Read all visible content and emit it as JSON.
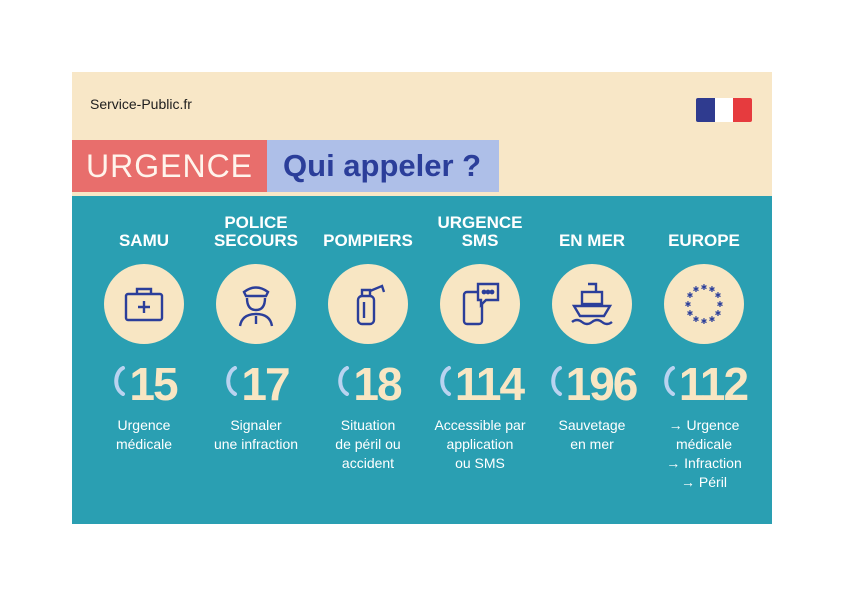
{
  "header": {
    "brand": "Service-Public.fr",
    "title_red": "URGENCE",
    "title_blue": "Qui appeler ?"
  },
  "colors": {
    "cream": "#f8e7c7",
    "teal": "#2a9fb2",
    "red": "#e86e6c",
    "blue_box": "#aebfe8",
    "navy": "#2b3e9a"
  },
  "services": [
    {
      "name": "SAMU",
      "icon": "medical-kit-icon",
      "number": "15",
      "description": "Urgence\nmédicale"
    },
    {
      "name": "POLICE\nSECOURS",
      "icon": "police-officer-icon",
      "number": "17",
      "description": "Signaler\nune infraction"
    },
    {
      "name": "POMPIERS",
      "icon": "fire-extinguisher-icon",
      "number": "18",
      "description": "Situation\nde péril ou\naccident"
    },
    {
      "name": "URGENCE\nSMS",
      "icon": "sms-phone-icon",
      "number": "114",
      "description": "Accessible par\napplication\nou SMS"
    },
    {
      "name": "EN MER",
      "icon": "ship-icon",
      "number": "196",
      "description": "Sauvetage\nen mer"
    },
    {
      "name": "EUROPE",
      "icon": "eu-stars-icon",
      "number": "112",
      "description": "→ Urgence\nmédicale\n→ Infraction\n→ Péril"
    }
  ]
}
